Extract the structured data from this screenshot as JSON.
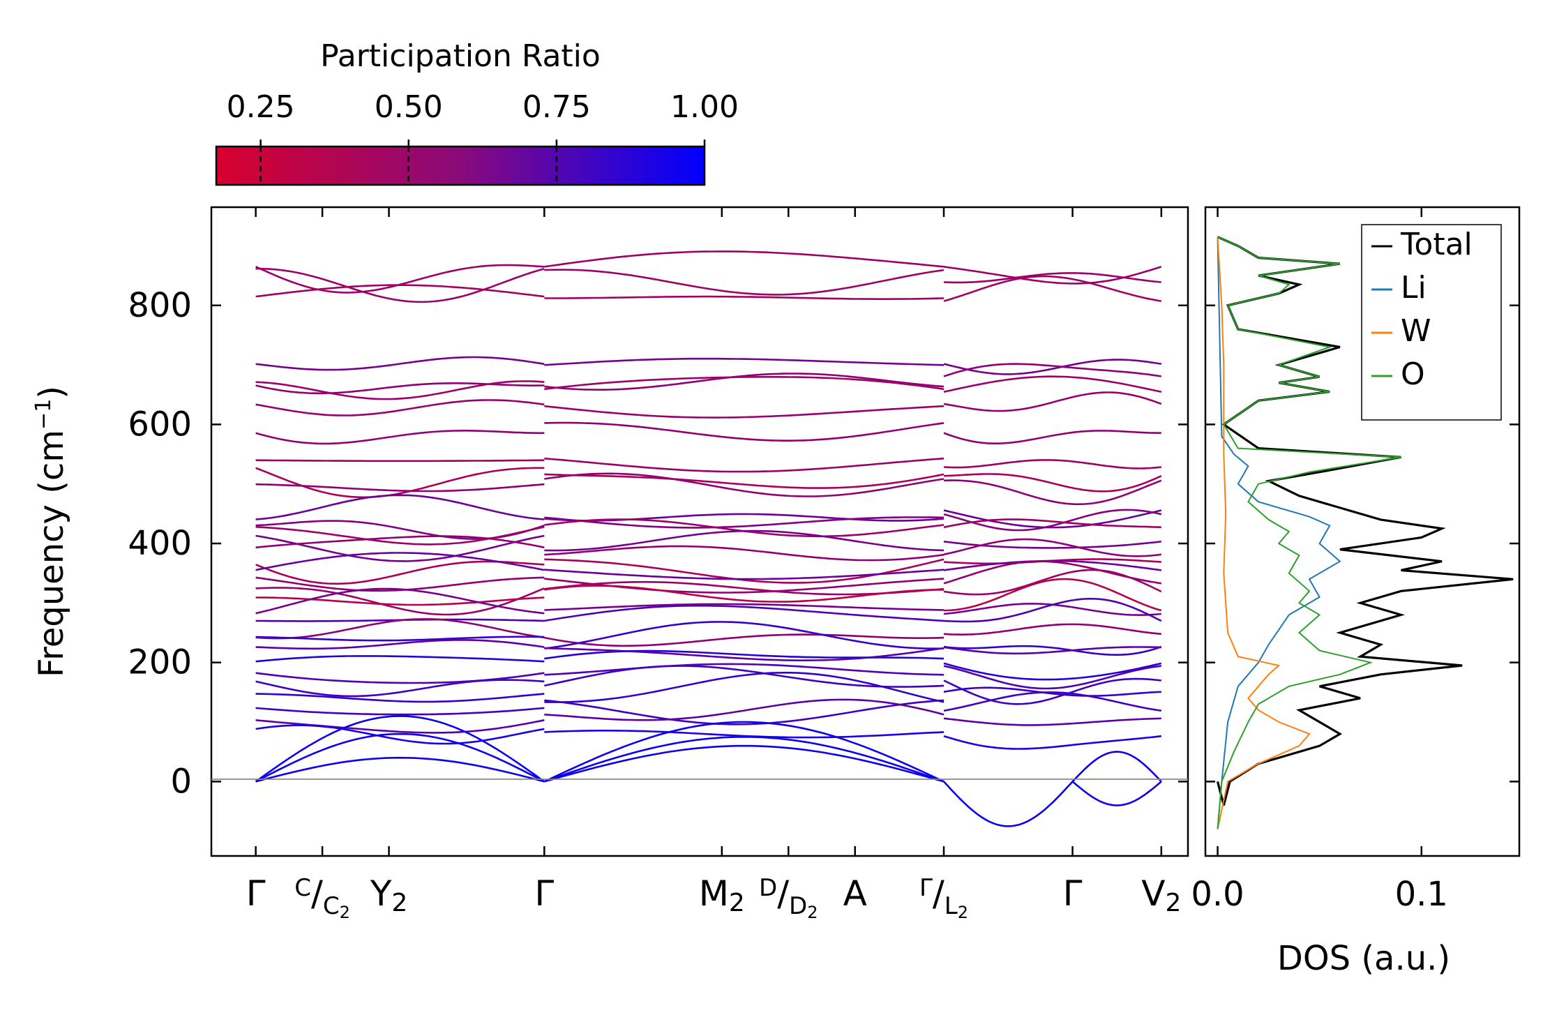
{
  "colorbar": {
    "title": "Participation Ratio",
    "ticks": [
      {
        "value": 0.25,
        "label": "0.25"
      },
      {
        "value": 0.5,
        "label": "0.50"
      },
      {
        "value": 0.75,
        "label": "0.75"
      },
      {
        "value": 1.0,
        "label": "1.00"
      }
    ],
    "range": [
      0.175,
      1.0
    ],
    "color_low": "#d8002e",
    "color_high": "#0000ff"
  },
  "chart_data": [
    {
      "type": "line",
      "name": "phonon-band-structure",
      "ylabel": "Frequency (cm",
      "ylabel_sup": "−1",
      "ylabel_close": ")",
      "ylim": [
        -125,
        965
      ],
      "yticks": [
        0,
        200,
        400,
        600,
        800
      ],
      "xlim": [
        -0.5,
        10.5
      ],
      "kpoints": [
        {
          "x": 0,
          "main": "Γ",
          "sub": ""
        },
        {
          "x": 0.75,
          "main": "",
          "sub": ""
        },
        {
          "x": 1.5,
          "main": "Y",
          "sub": "2"
        },
        {
          "x": 3.25,
          "main": "Γ",
          "sub": ""
        },
        {
          "x": 5.25,
          "main": "M",
          "sub": "2"
        },
        {
          "x": 6.0,
          "main": "",
          "sub": ""
        },
        {
          "x": 6.75,
          "main": "A",
          "sub": ""
        },
        {
          "x": 7.75,
          "main": "",
          "sub": ""
        },
        {
          "x": 9.2,
          "main": "Γ",
          "sub": ""
        },
        {
          "x": 10.2,
          "main": "V",
          "sub": "2"
        }
      ],
      "fraction_labels": [
        {
          "x": 0.75,
          "top": "C",
          "bottom": "C",
          "bottom_sub": "2"
        },
        {
          "x": 6.0,
          "top": "D",
          "bottom": "D",
          "bottom_sub": "2"
        },
        {
          "x": 7.75,
          "top": "Γ",
          "bottom": "L",
          "bottom_sub": "2"
        }
      ],
      "band_levels": [
        {
          "f": 865,
          "pr": 0.4
        },
        {
          "f": 845,
          "pr": 0.4
        },
        {
          "f": 815,
          "pr": 0.38
        },
        {
          "f": 700,
          "pr": 0.55
        },
        {
          "f": 675,
          "pr": 0.45
        },
        {
          "f": 655,
          "pr": 0.4
        },
        {
          "f": 630,
          "pr": 0.42
        },
        {
          "f": 595,
          "pr": 0.45
        },
        {
          "f": 540,
          "pr": 0.4
        },
        {
          "f": 520,
          "pr": 0.35
        },
        {
          "f": 498,
          "pr": 0.45
        },
        {
          "f": 455,
          "pr": 0.6
        },
        {
          "f": 440,
          "pr": 0.5
        },
        {
          "f": 425,
          "pr": 0.4
        },
        {
          "f": 405,
          "pr": 0.55
        },
        {
          "f": 390,
          "pr": 0.45
        },
        {
          "f": 370,
          "pr": 0.35
        },
        {
          "f": 355,
          "pr": 0.6
        },
        {
          "f": 338,
          "pr": 0.45
        },
        {
          "f": 322,
          "pr": 0.4
        },
        {
          "f": 305,
          "pr": 0.3
        },
        {
          "f": 290,
          "pr": 0.55
        },
        {
          "f": 270,
          "pr": 0.7
        },
        {
          "f": 255,
          "pr": 0.45
        },
        {
          "f": 240,
          "pr": 0.8
        },
        {
          "f": 225,
          "pr": 0.65
        },
        {
          "f": 200,
          "pr": 0.85
        },
        {
          "f": 185,
          "pr": 0.7
        },
        {
          "f": 165,
          "pr": 0.75
        },
        {
          "f": 145,
          "pr": 0.8
        },
        {
          "f": 125,
          "pr": 0.75
        },
        {
          "f": 105,
          "pr": 0.65
        },
        {
          "f": 80,
          "pr": 0.9
        }
      ]
    },
    {
      "type": "line",
      "name": "density-of-states",
      "xlabel": "DOS (a.u.)",
      "xlim": [
        -0.006,
        0.148
      ],
      "xticks": [
        {
          "value": 0.0,
          "label": "0.0"
        },
        {
          "value": 0.1,
          "label": "0.1"
        }
      ],
      "ylim": [
        -125,
        965
      ],
      "legend_position": "top-right",
      "series": [
        {
          "name": "Total",
          "color": "#000000",
          "width": 3.2,
          "points": [
            [
              -0.08,
              0.0
            ],
            [
              -40,
              0.003
            ],
            [
              0,
              0.006
            ],
            [
              30,
              0.02
            ],
            [
              60,
              0.05
            ],
            [
              80,
              0.06
            ],
            [
              100,
              0.05
            ],
            [
              120,
              0.04
            ],
            [
              140,
              0.07
            ],
            [
              160,
              0.05
            ],
            [
              180,
              0.08
            ],
            [
              195,
              0.12
            ],
            [
              210,
              0.07
            ],
            [
              230,
              0.08
            ],
            [
              250,
              0.06
            ],
            [
              280,
              0.09
            ],
            [
              300,
              0.07
            ],
            [
              320,
              0.09
            ],
            [
              340,
              0.145
            ],
            [
              355,
              0.09
            ],
            [
              370,
              0.11
            ],
            [
              390,
              0.06
            ],
            [
              410,
              0.1
            ],
            [
              425,
              0.11
            ],
            [
              440,
              0.08
            ],
            [
              460,
              0.06
            ],
            [
              480,
              0.04
            ],
            [
              505,
              0.025
            ],
            [
              520,
              0.05
            ],
            [
              545,
              0.09
            ],
            [
              560,
              0.02
            ],
            [
              600,
              0.003
            ],
            [
              640,
              0.02
            ],
            [
              655,
              0.055
            ],
            [
              670,
              0.03
            ],
            [
              680,
              0.05
            ],
            [
              700,
              0.03
            ],
            [
              730,
              0.06
            ],
            [
              760,
              0.01
            ],
            [
              800,
              0.005
            ],
            [
              820,
              0.03
            ],
            [
              835,
              0.04
            ],
            [
              850,
              0.02
            ],
            [
              870,
              0.06
            ],
            [
              880,
              0.02
            ],
            [
              900,
              0.01
            ],
            [
              915,
              0.0
            ]
          ]
        },
        {
          "name": "Li",
          "color": "#1f77b4",
          "width": 2,
          "points": [
            [
              -80,
              0.0
            ],
            [
              0,
              0.002
            ],
            [
              100,
              0.005
            ],
            [
              160,
              0.01
            ],
            [
              180,
              0.015
            ],
            [
              200,
              0.02
            ],
            [
              230,
              0.025
            ],
            [
              255,
              0.03
            ],
            [
              280,
              0.035
            ],
            [
              310,
              0.05
            ],
            [
              340,
              0.045
            ],
            [
              370,
              0.06
            ],
            [
              400,
              0.05
            ],
            [
              430,
              0.055
            ],
            [
              445,
              0.045
            ],
            [
              470,
              0.02
            ],
            [
              500,
              0.01
            ],
            [
              530,
              0.015
            ],
            [
              550,
              0.008
            ],
            [
              580,
              0.002
            ],
            [
              915,
              0.0
            ]
          ]
        },
        {
          "name": "W",
          "color": "#ff7f0e",
          "width": 2,
          "points": [
            [
              -80,
              0.0
            ],
            [
              0,
              0.005
            ],
            [
              30,
              0.02
            ],
            [
              60,
              0.04
            ],
            [
              80,
              0.045
            ],
            [
              100,
              0.03
            ],
            [
              120,
              0.02
            ],
            [
              140,
              0.015
            ],
            [
              160,
              0.02
            ],
            [
              180,
              0.025
            ],
            [
              195,
              0.03
            ],
            [
              210,
              0.01
            ],
            [
              250,
              0.005
            ],
            [
              350,
              0.003
            ],
            [
              450,
              0.004
            ],
            [
              550,
              0.003
            ],
            [
              700,
              0.003
            ],
            [
              800,
              0.002
            ],
            [
              915,
              0.0
            ]
          ]
        },
        {
          "name": "O",
          "color": "#2ca02c",
          "width": 2,
          "points": [
            [
              -80,
              0.0
            ],
            [
              0,
              0.002
            ],
            [
              50,
              0.008
            ],
            [
              100,
              0.015
            ],
            [
              130,
              0.02
            ],
            [
              160,
              0.035
            ],
            [
              180,
              0.06
            ],
            [
              200,
              0.075
            ],
            [
              220,
              0.05
            ],
            [
              250,
              0.04
            ],
            [
              280,
              0.05
            ],
            [
              300,
              0.04
            ],
            [
              320,
              0.045
            ],
            [
              350,
              0.035
            ],
            [
              380,
              0.04
            ],
            [
              400,
              0.03
            ],
            [
              420,
              0.035
            ],
            [
              440,
              0.025
            ],
            [
              470,
              0.015
            ],
            [
              500,
              0.02
            ],
            [
              520,
              0.045
            ],
            [
              545,
              0.09
            ],
            [
              560,
              0.01
            ],
            [
              600,
              0.003
            ],
            [
              640,
              0.02
            ],
            [
              655,
              0.055
            ],
            [
              670,
              0.03
            ],
            [
              680,
              0.05
            ],
            [
              700,
              0.03
            ],
            [
              730,
              0.055
            ],
            [
              760,
              0.01
            ],
            [
              800,
              0.005
            ],
            [
              820,
              0.03
            ],
            [
              835,
              0.035
            ],
            [
              850,
              0.02
            ],
            [
              870,
              0.06
            ],
            [
              880,
              0.02
            ],
            [
              900,
              0.01
            ],
            [
              915,
              0.0
            ]
          ]
        }
      ]
    }
  ]
}
